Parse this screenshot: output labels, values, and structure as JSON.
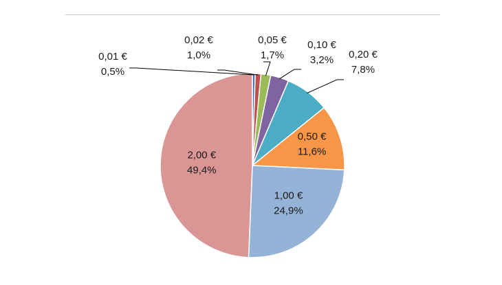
{
  "chart_data": {
    "type": "pie",
    "title": "",
    "slices": [
      {
        "label": "0,01 €",
        "percent_label": "0,5%",
        "value": 0.5,
        "color": "#4a6fa5"
      },
      {
        "label": "0,02 €",
        "percent_label": "1,0%",
        "value": 1.0,
        "color": "#c0504d"
      },
      {
        "label": "0,05 €",
        "percent_label": "1,7%",
        "value": 1.7,
        "color": "#9bbb59"
      },
      {
        "label": "0,10 €",
        "percent_label": "3,2%",
        "value": 3.2,
        "color": "#8064a2"
      },
      {
        "label": "0,20 €",
        "percent_label": "7,8%",
        "value": 7.8,
        "color": "#4bacc6"
      },
      {
        "label": "0,50 €",
        "percent_label": "11,6%",
        "value": 11.6,
        "color": "#f79646"
      },
      {
        "label": "1,00 €",
        "percent_label": "24,9%",
        "value": 24.9,
        "color": "#95b3d7"
      },
      {
        "label": "2,00 €",
        "percent_label": "49,4%",
        "value": 49.4,
        "color": "#d99694"
      }
    ],
    "legend": "none"
  }
}
